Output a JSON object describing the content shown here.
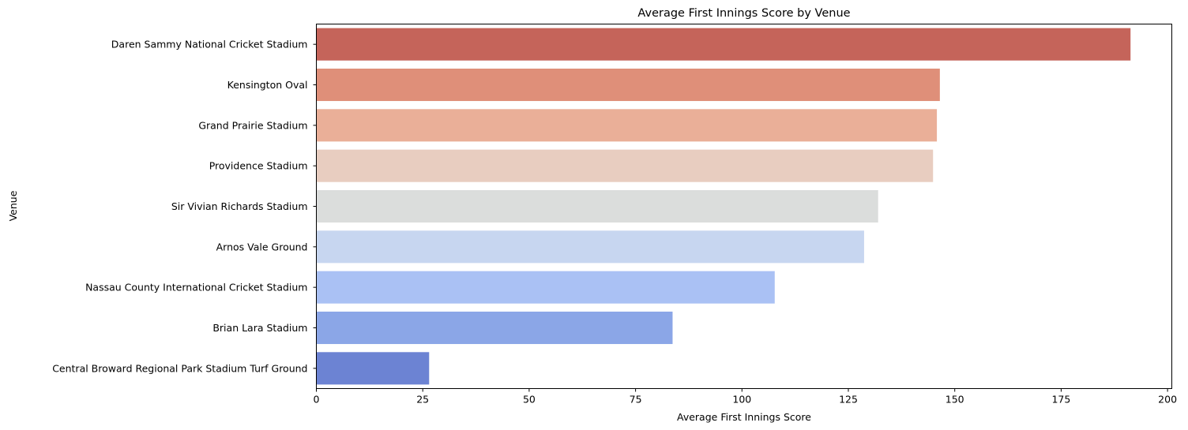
{
  "chart_data": {
    "type": "bar",
    "orientation": "horizontal",
    "title": "Average First Innings Score by Venue",
    "xlabel": "Average First Innings Score",
    "ylabel": "Venue",
    "xlim": [
      0,
      201
    ],
    "xticks": [
      0,
      25,
      50,
      75,
      100,
      125,
      150,
      175,
      200
    ],
    "grid": false,
    "categories": [
      "Daren Sammy National Cricket Stadium",
      "Kensington Oval",
      "Grand Prairie Stadium",
      "Providence Stadium",
      "Sir Vivian Richards Stadium",
      "Arnos Vale Ground",
      "Nassau County International Cricket Stadium",
      "Brian Lara Stadium",
      "Central Broward Regional Park Stadium Turf Ground"
    ],
    "values": [
      191.3,
      146.5,
      145.8,
      144.9,
      132.0,
      128.7,
      107.7,
      83.7,
      26.5
    ],
    "colors": [
      "#c5645a",
      "#df8f79",
      "#eaaf98",
      "#e8cdc0",
      "#dbdddc",
      "#c7d6f0",
      "#aac1f4",
      "#8ba6e7",
      "#6c83d3"
    ]
  }
}
